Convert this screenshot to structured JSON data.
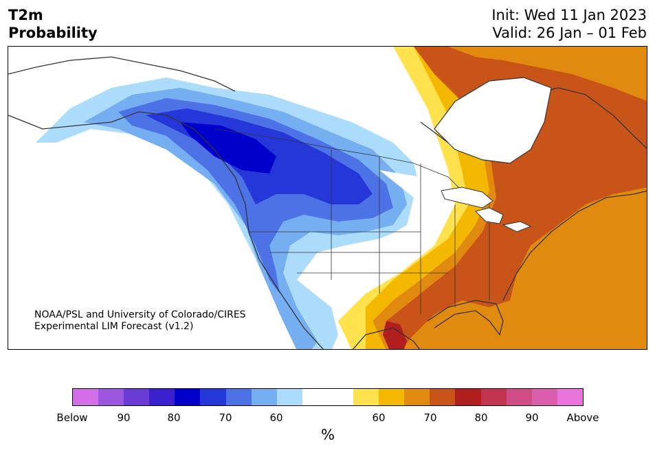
{
  "title": [
    "T2m",
    "Probability"
  ],
  "init_line": "Init: Wed 11 Jan 2023",
  "valid_line": "Valid: 26 Jan – 01 Feb",
  "credit": [
    "NOAA/PSL and University of Colorado/CIRES",
    "Experimental LIM Forecast (v1.2)"
  ],
  "colorbar": {
    "colors": [
      "#d36fe6",
      "#9b57de",
      "#6b3bd6",
      "#3a1fcf",
      "#0000cc",
      "#2637d9",
      "#4d72e6",
      "#76aef2",
      "#acdcfc",
      "#ffffff",
      "#ffffff",
      "#ffe24d",
      "#f5b800",
      "#e08a0f",
      "#c9541a",
      "#b01e1e",
      "#c3344f",
      "#d04d86",
      "#dc5fae",
      "#e874dc"
    ],
    "ticks": [
      "Below",
      "90",
      "80",
      "70",
      "60",
      "60",
      "70",
      "80",
      "90",
      "Above"
    ],
    "unit": "%"
  },
  "colors": {
    "coast": "#333333",
    "border": "#333333"
  }
}
